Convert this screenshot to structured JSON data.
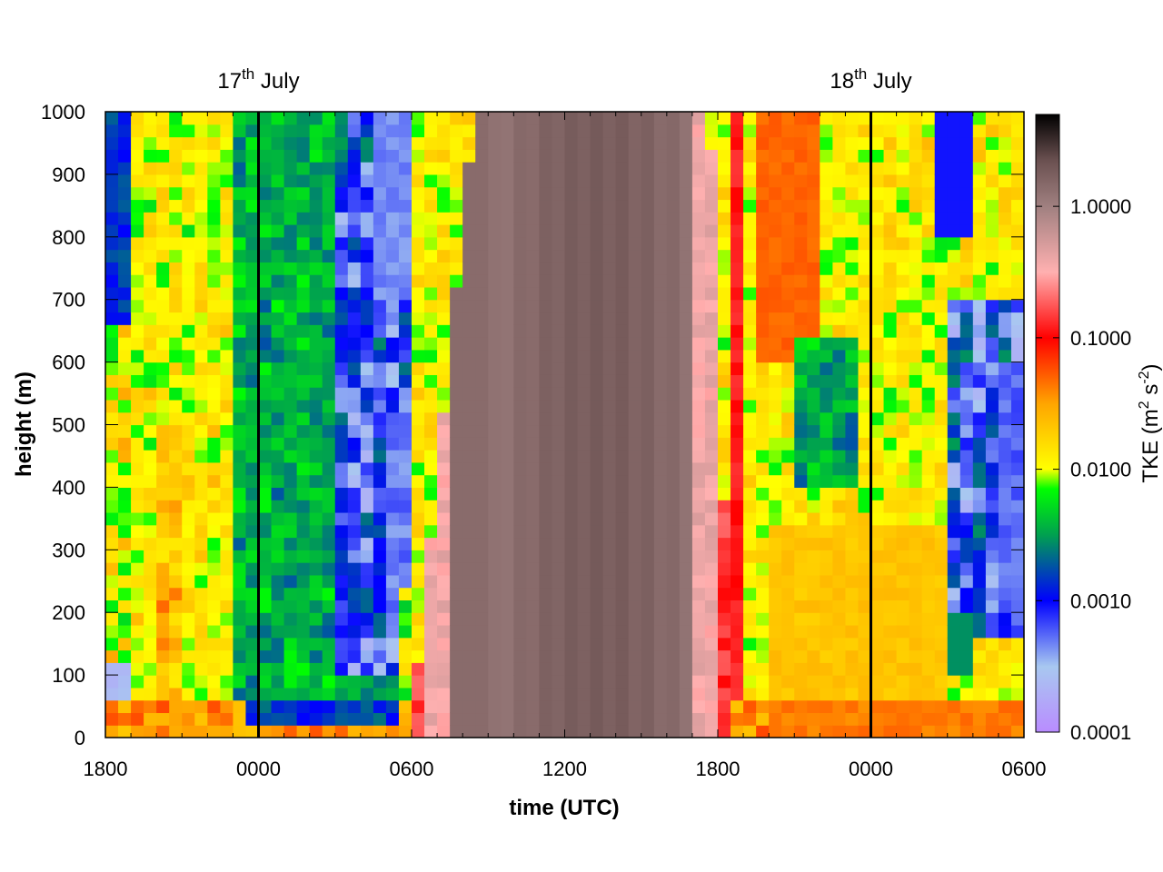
{
  "chart_data": {
    "type": "heatmap",
    "title": "",
    "xlabel": "time (UTC)",
    "ylabel": "height (m)",
    "x_ticks": [
      "1800",
      "0000",
      "0600",
      "1200",
      "1800",
      "0000",
      "0600"
    ],
    "x_tick_hours": [
      0,
      6,
      12,
      18,
      24,
      30,
      36
    ],
    "xlim_hours": [
      0,
      36
    ],
    "y_ticks": [
      0,
      100,
      200,
      300,
      400,
      500,
      600,
      700,
      800,
      900,
      1000
    ],
    "ylim": [
      0,
      1000
    ],
    "date_markers": [
      {
        "hour": 6,
        "day": "17",
        "suffix": "th",
        "month": "July"
      },
      {
        "hour": 30,
        "day": "18",
        "suffix": "th",
        "month": "July"
      }
    ],
    "colorbar": {
      "label_main": "TKE (m",
      "label_sup1": "2",
      "label_mid": " s",
      "label_sup2": "-2",
      "label_end": ")",
      "scale": "log",
      "range": [
        0.0001,
        5.0
      ],
      "ticks": [
        0.0001,
        0.001,
        0.01,
        0.1,
        1.0
      ],
      "tick_labels": [
        "0.0001",
        "0.0010",
        "0.0100",
        "0.1000",
        "1.0000"
      ],
      "colors": [
        {
          "log10": -4.0,
          "color": "#b98cff"
        },
        {
          "log10": -3.5,
          "color": "#a8c8f0"
        },
        {
          "log10": -3.0,
          "color": "#0000ff"
        },
        {
          "log10": -2.5,
          "color": "#00a050"
        },
        {
          "log10": -2.15,
          "color": "#00ff00"
        },
        {
          "log10": -2.0,
          "color": "#ffff00"
        },
        {
          "log10": -1.5,
          "color": "#ffa500"
        },
        {
          "log10": -1.0,
          "color": "#ff0000"
        },
        {
          "log10": -0.5,
          "color": "#ffb0b0"
        },
        {
          "log10": 0.0,
          "color": "#a08080"
        },
        {
          "log10": 0.35,
          "color": "#6a5050"
        },
        {
          "log10": 0.7,
          "color": "#000000"
        }
      ]
    },
    "grid": {
      "columns": 72,
      "rows": 50,
      "bottom_row_height_m": 20,
      "description_of_field_log10_tke": [
        {
          "hours": [
            0,
            0.8
          ],
          "heights": [
            0,
            1000
          ],
          "value": "-3.0 to -2.0 (blue/green top, purple near 100 m)"
        },
        {
          "hours": [
            1,
            12
          ],
          "heights": [
            0,
            1000
          ],
          "value": "-2.5 to -1.4 (green/yellow/orange mix)"
        },
        {
          "hours": [
            6,
            12
          ],
          "heights": [
            50,
            100
          ],
          "value": "-3.0 (blue nocturnal band)"
        },
        {
          "hours": [
            9,
            12.5
          ],
          "heights": [
            100,
            1000
          ],
          "value": "-3.7 to -2.5 (blue/purple patches)"
        },
        {
          "hours": [
            12,
            15
          ],
          "heights": [
            0,
            1000
          ],
          "value": "-1.2 to -0.5 (red/pink, morning growth)"
        },
        {
          "hours": [
            15,
            24
          ],
          "heights": [
            0,
            1000
          ],
          "value": "-0.3 to 0.3 (brown, daytime maximum ~1.5 m2 s-2)"
        },
        {
          "hours": [
            24,
            25
          ],
          "heights": [
            0,
            1000
          ],
          "value": "-1.0 (red evening decay)"
        },
        {
          "hours": [
            25,
            36
          ],
          "heights": [
            0,
            1000
          ],
          "value": "-2.3 to -1.3 (yellow/orange, green patches)"
        },
        {
          "hours": [
            33,
            36
          ],
          "heights": [
            200,
            600
          ],
          "value": "-3.5 to -2.5 (blue/purple patches)"
        }
      ]
    }
  }
}
